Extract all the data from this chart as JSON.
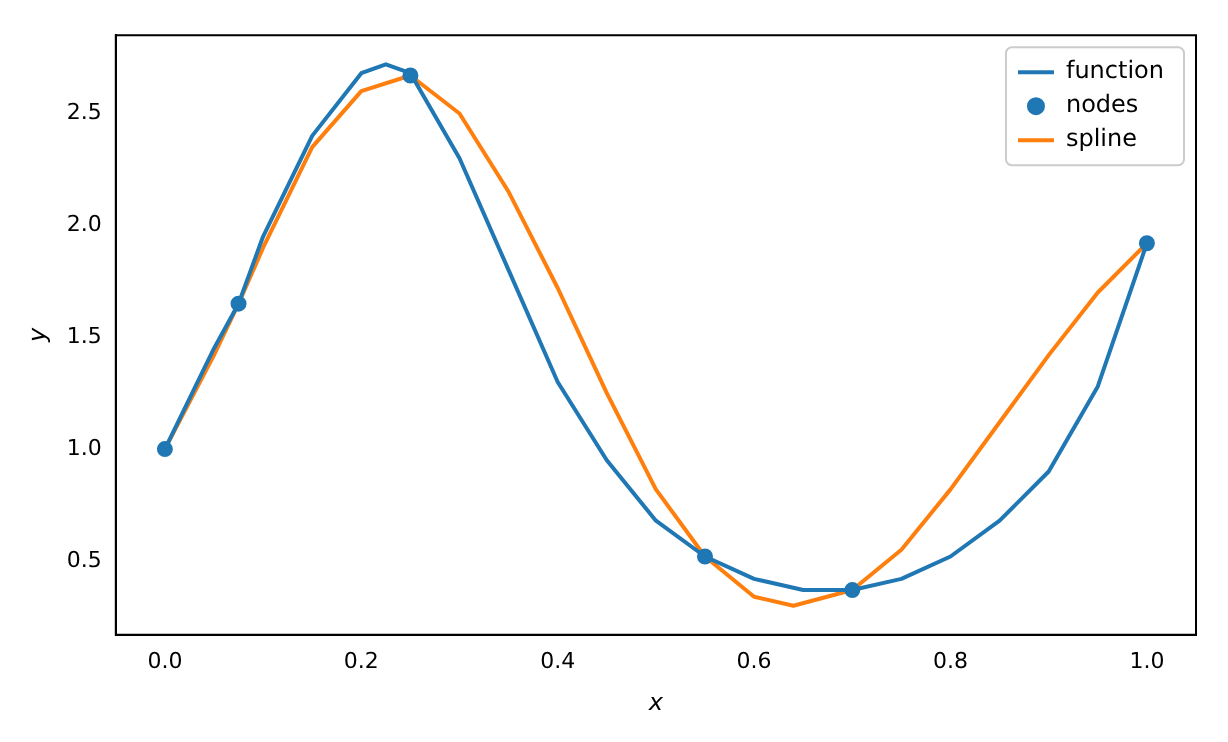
{
  "chart_data": {
    "type": "line",
    "xlabel": "x",
    "ylabel": "y",
    "xlim": [
      -0.05,
      1.05
    ],
    "ylim": [
      0.17,
      2.85
    ],
    "xticks": [
      {
        "value": 0,
        "label": "0.0"
      },
      {
        "value": 0.2,
        "label": "0.2"
      },
      {
        "value": 0.4,
        "label": "0.4"
      },
      {
        "value": 0.6,
        "label": "0.6"
      },
      {
        "value": 0.8,
        "label": "0.8"
      },
      {
        "value": 1,
        "label": "1.0"
      }
    ],
    "yticks": [
      {
        "value": 0.5,
        "label": "0.5"
      },
      {
        "value": 1,
        "label": "1.0"
      },
      {
        "value": 1.5,
        "label": "1.5"
      },
      {
        "value": 2,
        "label": "2.0"
      },
      {
        "value": 2.5,
        "label": "2.5"
      }
    ],
    "legend": "top right",
    "grid": false,
    "line_style": "solid",
    "series": [
      {
        "name": "function",
        "type": "line",
        "color": "#1f77b4",
        "x": [
          0,
          0.05,
          0.075,
          0.1,
          0.15,
          0.2,
          0.225,
          0.25,
          0.3,
          0.35,
          0.4,
          0.45,
          0.5,
          0.55,
          0.6,
          0.65,
          0.7,
          0.75,
          0.8,
          0.85,
          0.9,
          0.95,
          1.0
        ],
        "values": [
          1.0,
          1.45,
          1.65,
          1.95,
          2.4,
          2.68,
          2.72,
          2.68,
          2.3,
          1.8,
          1.3,
          0.95,
          0.68,
          0.52,
          0.42,
          0.37,
          0.37,
          0.42,
          0.52,
          0.68,
          0.9,
          1.28,
          1.92
        ]
      },
      {
        "name": "nodes",
        "type": "scatter",
        "marker": "circle",
        "color": "#1f77b4",
        "x": [
          0,
          0.075,
          0.25,
          0.55,
          0.7,
          1.0
        ],
        "values": [
          1.0,
          1.65,
          2.67,
          0.52,
          0.37,
          1.92
        ]
      },
      {
        "name": "spline",
        "type": "line",
        "color": "#ff7f0e",
        "x": [
          0,
          0.05,
          0.075,
          0.1,
          0.15,
          0.2,
          0.25,
          0.3,
          0.35,
          0.4,
          0.45,
          0.5,
          0.55,
          0.6,
          0.64,
          0.7,
          0.75,
          0.8,
          0.85,
          0.9,
          0.95,
          1.0
        ],
        "values": [
          1.0,
          1.42,
          1.65,
          1.9,
          2.35,
          2.6,
          2.67,
          2.5,
          2.15,
          1.72,
          1.25,
          0.82,
          0.52,
          0.34,
          0.3,
          0.37,
          0.55,
          0.82,
          1.12,
          1.42,
          1.7,
          1.92
        ]
      }
    ]
  }
}
